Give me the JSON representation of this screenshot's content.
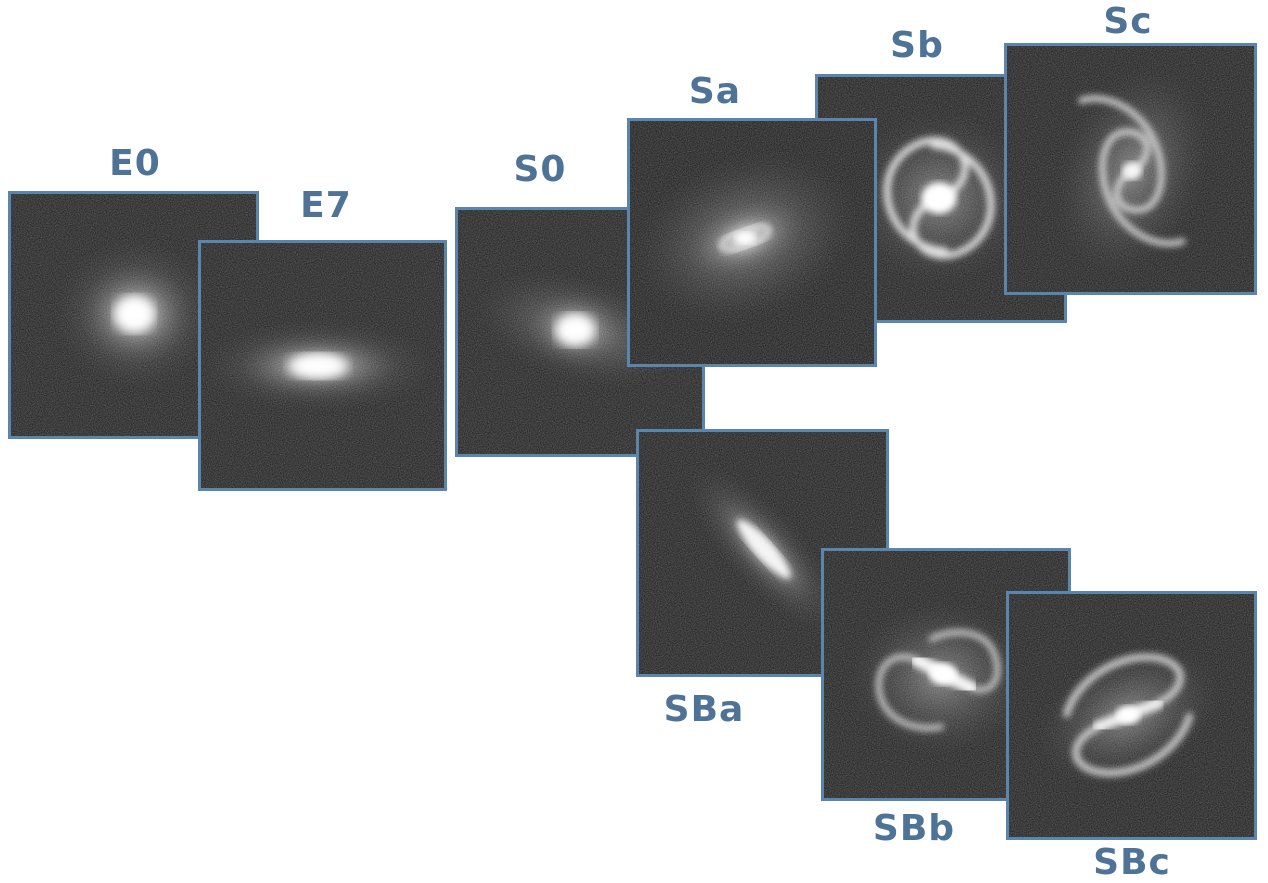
{
  "galaxies": {
    "E0": {
      "label": "E0",
      "form": "elliptical",
      "axis_ratio": 1.0
    },
    "E7": {
      "label": "E7",
      "form": "elliptical",
      "axis_ratio": 0.3
    },
    "S0": {
      "label": "S0",
      "form": "lenticular"
    },
    "Sa": {
      "label": "Sa",
      "form": "spiral"
    },
    "Sb": {
      "label": "Sb",
      "form": "spiral"
    },
    "Sc": {
      "label": "Sc",
      "form": "spiral"
    },
    "SBa": {
      "label": "SBa",
      "form": "barred-spiral"
    },
    "SBb": {
      "label": "SBb",
      "form": "barred-spiral"
    },
    "SBc": {
      "label": "SBc",
      "form": "barred-spiral"
    }
  },
  "colors": {
    "frame": "#5a86ae",
    "label": "#4f7397",
    "sky": "#141414"
  }
}
